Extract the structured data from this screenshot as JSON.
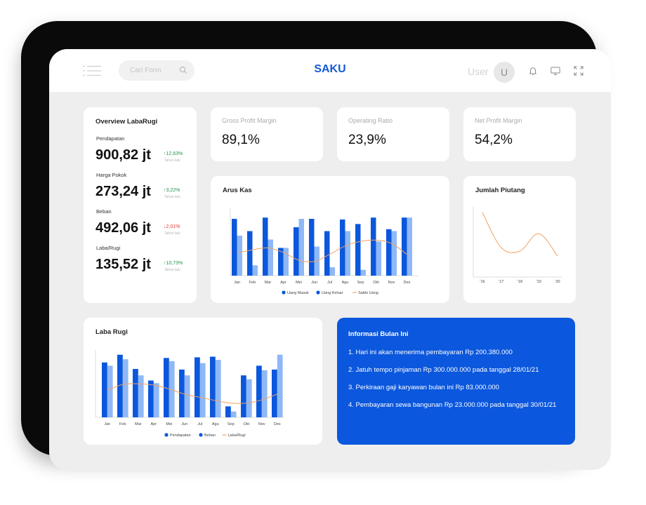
{
  "header": {
    "app_title": "SAKU",
    "search_placeholder": "Cari Form",
    "user_label": "User",
    "avatar_initial": "U",
    "icons": [
      "menu-icon",
      "search-icon",
      "bell-icon",
      "monitor-icon",
      "fullscreen-icon"
    ]
  },
  "overview": {
    "title": "Overview LabaRugi",
    "items": [
      {
        "label": "Pendapatan",
        "value": "900,82 jt",
        "change": "↑12,63%",
        "direction": "up",
        "sub": "Tahun lalu"
      },
      {
        "label": "Harga Pokok",
        "value": "273,24 jt",
        "change": "↑3,22%",
        "direction": "up",
        "sub": "Tahun lalu"
      },
      {
        "label": "Beban",
        "value": "492,06 jt",
        "change": "↓2,01%",
        "direction": "down",
        "sub": "Tahun lalu"
      },
      {
        "label": "Laba/Rugi",
        "value": "135,52 jt",
        "change": "↑10,73%",
        "direction": "up",
        "sub": "Tahun lalu"
      }
    ]
  },
  "kpis": [
    {
      "label": "Gross Profit Margin",
      "value": "89,1%"
    },
    {
      "label": "Operating Ratio",
      "value": "23,9%"
    },
    {
      "label": "Net Profit Margin",
      "value": "54,2%"
    }
  ],
  "colors": {
    "primary": "#0b57dd",
    "light_blue": "#8fb8f6",
    "orange_line": "#f2a262",
    "up_green": "#1e9652",
    "down_red": "#e03a3a"
  },
  "chart_data": [
    {
      "name": "arus-kas",
      "type": "bar",
      "title": "Arus Kas",
      "categories": [
        "Jan",
        "Feb",
        "Mar",
        "Apr",
        "Mei",
        "Jun",
        "Jul",
        "Agu",
        "Sep",
        "Okt",
        "Nov",
        "Des"
      ],
      "series": [
        {
          "name": "Uang Masuk",
          "values": [
            88,
            69,
            90,
            43,
            75,
            88,
            69,
            87,
            80,
            90,
            72,
            90
          ]
        },
        {
          "name": "Uang Keluar",
          "values": [
            62,
            16,
            56,
            43,
            88,
            45,
            13,
            69,
            9,
            53,
            69,
            90
          ]
        },
        {
          "name": "Saldo Uang",
          "type": "line",
          "values": [
            35,
            40,
            43,
            36,
            24,
            22,
            33,
            46,
            53,
            55,
            50,
            33
          ]
        }
      ],
      "ylim": [
        0,
        100
      ],
      "legend": "bottom",
      "grid": false
    },
    {
      "name": "jumlah-piutang",
      "type": "line",
      "title": "Jumlah Piutang",
      "x": [
        "'16",
        "'17",
        "'18",
        "'19",
        "'20"
      ],
      "series": [
        {
          "name": "",
          "values": [
            92,
            42,
            37,
            62,
            30
          ]
        }
      ],
      "ylim": [
        0,
        100
      ],
      "grid": false
    },
    {
      "name": "laba-rugi",
      "type": "bar",
      "title": "Laba Rugi",
      "categories": [
        "Jan",
        "Feb",
        "Mar",
        "Apr",
        "Mei",
        "Jun",
        "Jul",
        "Agu",
        "Sep",
        "Okt",
        "Nov",
        "Des"
      ],
      "series": [
        {
          "name": "Pendapatan",
          "values": [
            85,
            97,
            75,
            57,
            92,
            74,
            93,
            94,
            17,
            65,
            80,
            74
          ]
        },
        {
          "name": "Beban",
          "values": [
            80,
            90,
            65,
            53,
            87,
            65,
            84,
            89,
            9,
            59,
            73,
            97
          ]
        },
        {
          "name": "Laba/Rugi",
          "type": "line",
          "values": [
            42,
            51,
            52,
            50,
            44,
            36,
            31,
            26,
            22,
            22,
            27,
            36
          ]
        }
      ],
      "ylim": [
        0,
        100
      ],
      "legend": "bottom",
      "grid": false
    }
  ],
  "info": {
    "title": "Informasi Bulan Ini",
    "items": [
      "1. Hari ini akan menerima pembayaran Rp 200.380.000",
      "2. Jatuh tempo pinjaman Rp 300.000.000 pada tanggal 28/01/21",
      "3. Perkiraan gaji karyawan bulan ini Rp 83.000.000",
      "4. Pembayaran sewa bangunan Rp 23.000.000 pada tanggal 30/01/21"
    ]
  }
}
